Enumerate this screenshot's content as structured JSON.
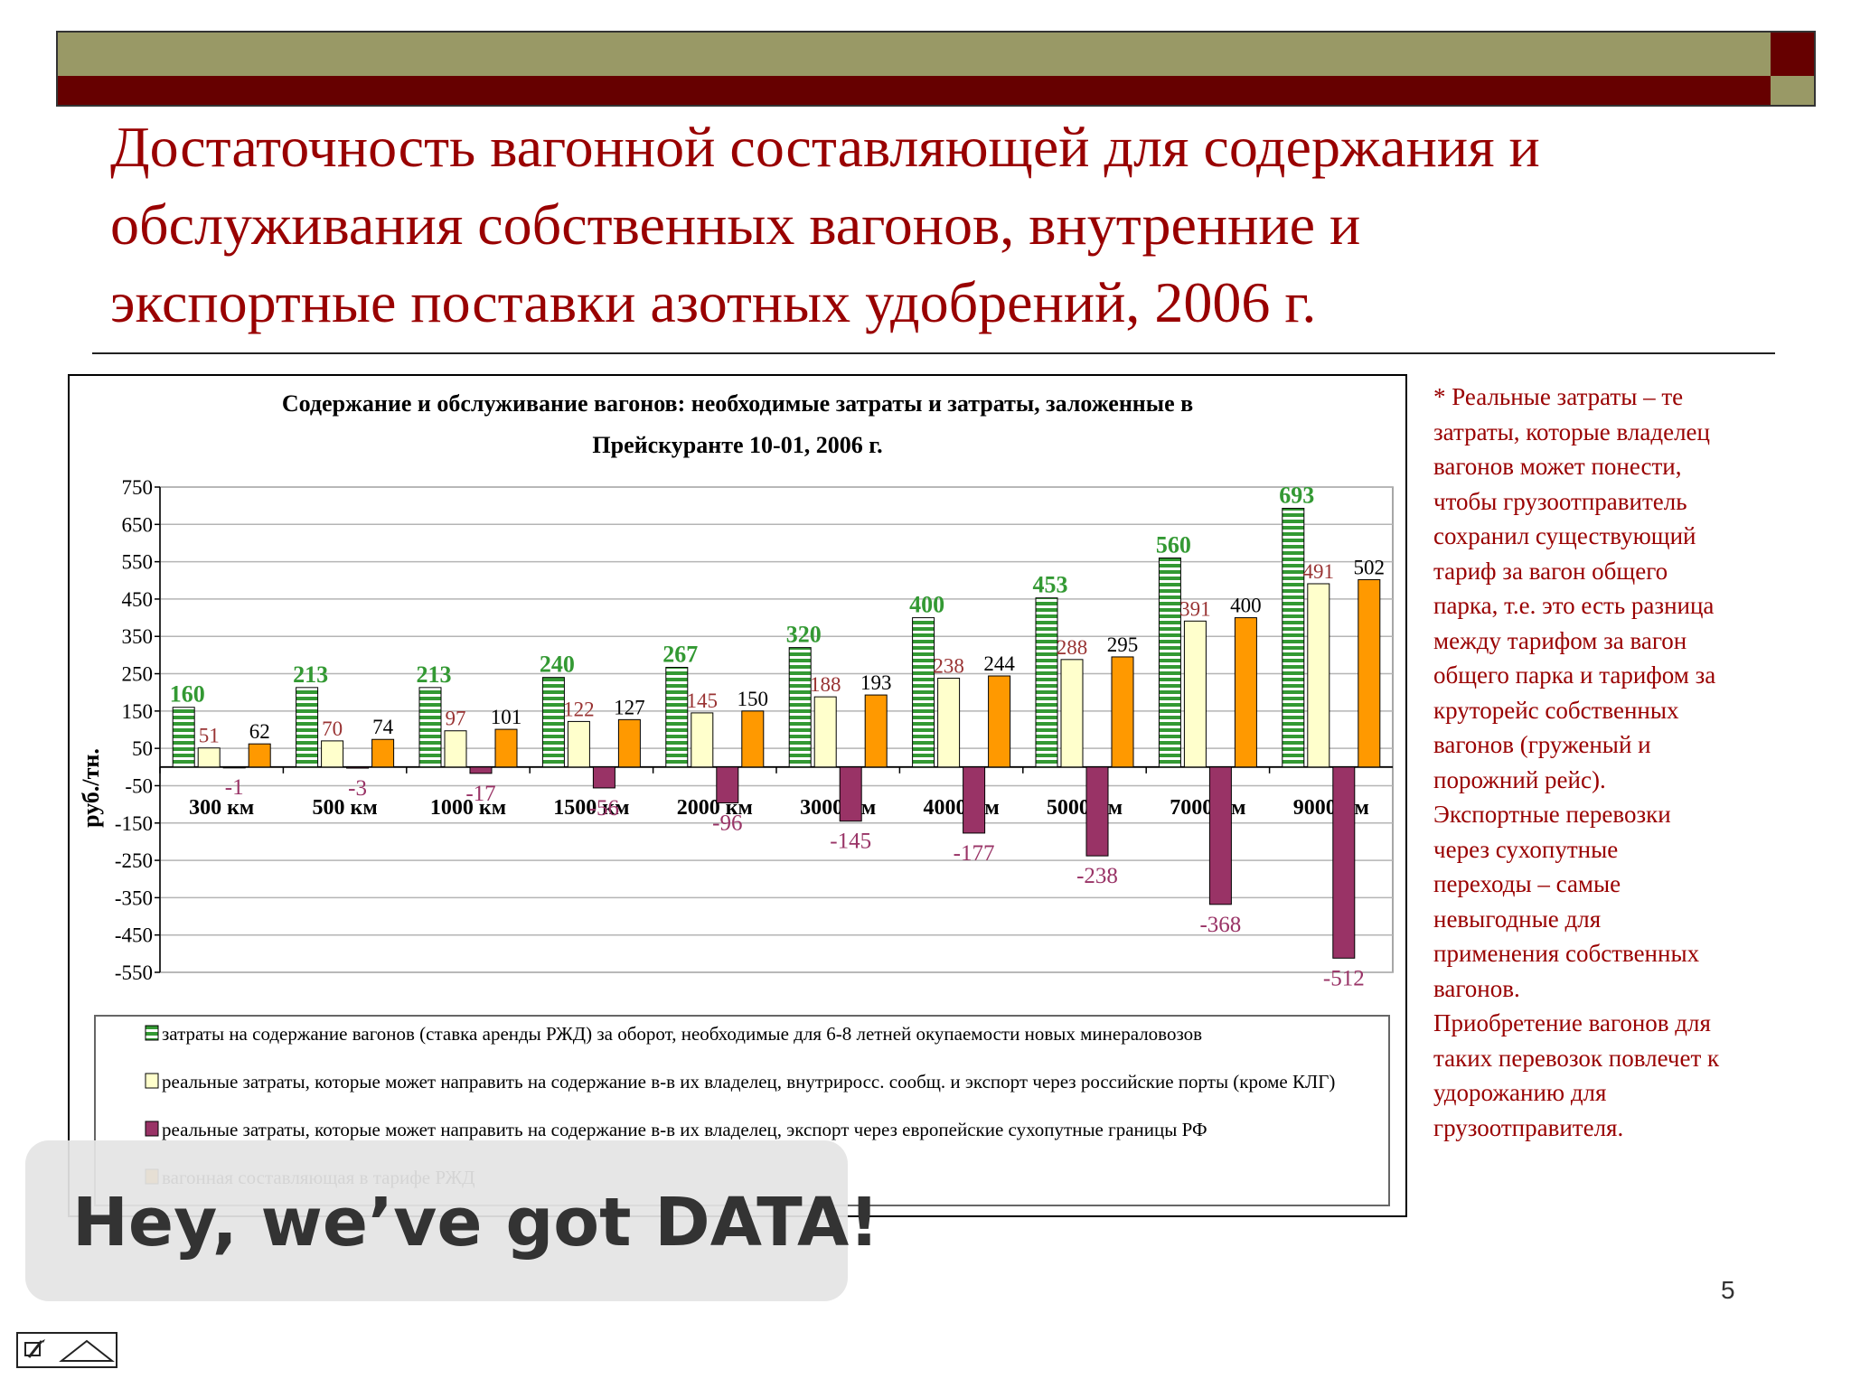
{
  "slide": {
    "title_lines": [
      "Достаточность вагонной составляющей для содержания и",
      "обслуживания собственных вагонов, внутренние и",
      "экспортные поставки азотных удобрений, 2006 г."
    ],
    "side_note_lines": [
      "* Реальные затраты – те",
      "затраты, которые владелец",
      "вагонов может понести,",
      "чтобы грузоотправитель",
      "сохранил существующий",
      "тариф за вагон общего",
      "парка, т.е. это есть разница",
      "между тарифом за вагон",
      "общего парка и тарифом за",
      "круторейс собственных",
      "вагонов (груженый и",
      "порожний рейс).",
      "Экспортные перевозки",
      "через сухопутные",
      "переходы – самые",
      "невыгодные для",
      "применения собственных",
      "вагонов.",
      "Приобретение вагонов для",
      "таких перевозок повлечет к",
      "удорожанию для",
      "грузоотправителя."
    ],
    "overlay_badge": "Hey, we’ve got DATA!",
    "page_number": "5",
    "colors": {
      "title": "#990000",
      "band_olive": "#999966",
      "band_dark_red": "#660000"
    }
  },
  "chart_data": {
    "type": "bar",
    "title": "Содержание и обслуживание вагонов: необходимые затраты и затраты, заложенные в Прейскуранте 10-01, 2006 г.",
    "title_lines": [
      "Содержание и обслуживание вагонов: необходимые затраты и затраты, заложенные в",
      "Прейскуранте 10-01, 2006 г."
    ],
    "ylabel": "руб./тн.",
    "xlabel": "",
    "ylim": [
      -550,
      750
    ],
    "yticks": [
      750,
      650,
      550,
      450,
      350,
      250,
      150,
      50,
      -50,
      -150,
      -250,
      -350,
      -450,
      -550
    ],
    "grid": true,
    "legend_position": "bottom",
    "categories": [
      "300 км",
      "500 км",
      "1000 км",
      "1500 км",
      "2000 км",
      "3000 км",
      "4000 км",
      "5000 км",
      "7000 км",
      "9000 км"
    ],
    "series": [
      {
        "name": "затраты на содержание вагонов (ставка аренды РЖД) за оборот, необходимые для 6-8 летней окупаемости новых минераловозов",
        "values": [
          160,
          213,
          213,
          240,
          267,
          320,
          400,
          453,
          560,
          693
        ],
        "color": "#339933",
        "pattern": "green-stripes",
        "label_color": "#339933"
      },
      {
        "name": "реальные затраты, которые может направить на содержание в-в их владелец, внутриросс. сообщ. и экспорт через российские порты (кроме КЛГ)",
        "values": [
          51,
          70,
          97,
          122,
          145,
          188,
          238,
          288,
          391,
          491
        ],
        "color": "#ffffcc",
        "label_color": "#993333"
      },
      {
        "name": "реальные затраты, которые может направить на содержание в-в их владелец, экспорт через европейские сухопутные границы РФ",
        "values": [
          -1,
          -3,
          -17,
          -56,
          -96,
          -145,
          -177,
          -238,
          -368,
          -512
        ],
        "color": "#993366",
        "label_color": "#993366"
      },
      {
        "name": "вагонная составляющая в тарифе РЖД",
        "values": [
          62,
          74,
          101,
          127,
          150,
          193,
          244,
          295,
          400,
          502
        ],
        "color": "#ff9900",
        "label_color": "#000000"
      }
    ]
  }
}
